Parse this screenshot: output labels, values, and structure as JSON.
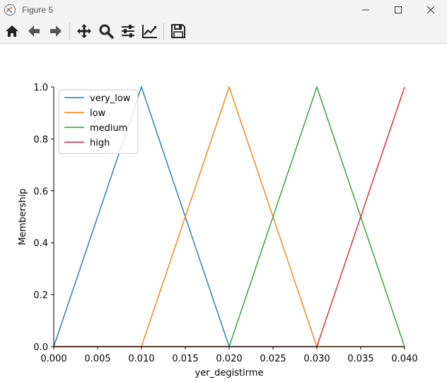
{
  "window": {
    "title": "Figure 5"
  },
  "toolbar": {
    "buttons": [
      {
        "name": "home-icon"
      },
      {
        "name": "back-icon"
      },
      {
        "name": "forward-icon"
      },
      {
        "name": "pan-icon"
      },
      {
        "name": "zoom-icon"
      },
      {
        "name": "configure-subplots-icon"
      },
      {
        "name": "edit-axis-icon"
      },
      {
        "name": "save-icon"
      }
    ]
  },
  "chart_data": {
    "type": "line",
    "title": "",
    "xlabel": "yer_degistirme",
    "ylabel": "Membership",
    "xlim": [
      0.0,
      0.04
    ],
    "ylim": [
      0.0,
      1.0
    ],
    "xticks": [
      "0.000",
      "0.005",
      "0.010",
      "0.015",
      "0.020",
      "0.025",
      "0.030",
      "0.035",
      "0.040"
    ],
    "xtick_values": [
      0.0,
      0.005,
      0.01,
      0.015,
      0.02,
      0.025,
      0.03,
      0.035,
      0.04
    ],
    "yticks": [
      "0.0",
      "0.2",
      "0.4",
      "0.6",
      "0.8",
      "1.0"
    ],
    "ytick_values": [
      0.0,
      0.2,
      0.4,
      0.6,
      0.8,
      1.0
    ],
    "legend_position": "top-left",
    "grid": false,
    "series": [
      {
        "name": "very_low",
        "color": "#1f77b4",
        "x": [
          0.0,
          0.01,
          0.02,
          0.04
        ],
        "y": [
          0.0,
          1.0,
          0.0,
          0.0
        ]
      },
      {
        "name": "low",
        "color": "#ff7f0e",
        "x": [
          0.0,
          0.01,
          0.02,
          0.03,
          0.04
        ],
        "y": [
          0.0,
          0.0,
          1.0,
          0.0,
          0.0
        ]
      },
      {
        "name": "medium",
        "color": "#2ca02c",
        "x": [
          0.0,
          0.02,
          0.03,
          0.04
        ],
        "y": [
          0.0,
          0.0,
          1.0,
          0.0
        ]
      },
      {
        "name": "high",
        "color": "#d62728",
        "x": [
          0.0,
          0.03,
          0.04
        ],
        "y": [
          0.0,
          0.0,
          1.0
        ]
      }
    ]
  }
}
